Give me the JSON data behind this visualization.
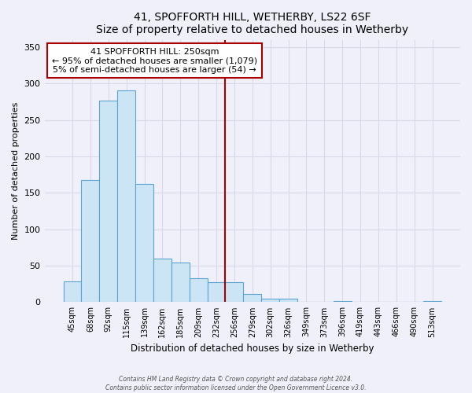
{
  "title": "41, SPOFFORTH HILL, WETHERBY, LS22 6SF",
  "subtitle": "Size of property relative to detached houses in Wetherby",
  "xlabel": "Distribution of detached houses by size in Wetherby",
  "ylabel": "Number of detached properties",
  "bar_labels": [
    "45sqm",
    "68sqm",
    "92sqm",
    "115sqm",
    "139sqm",
    "162sqm",
    "185sqm",
    "209sqm",
    "232sqm",
    "256sqm",
    "279sqm",
    "302sqm",
    "326sqm",
    "349sqm",
    "373sqm",
    "396sqm",
    "419sqm",
    "443sqm",
    "466sqm",
    "490sqm",
    "513sqm"
  ],
  "bar_values": [
    29,
    168,
    277,
    290,
    162,
    60,
    54,
    33,
    27,
    27,
    11,
    5,
    5,
    0,
    0,
    2,
    0,
    0,
    0,
    0,
    2
  ],
  "bar_color": "#cce5f5",
  "bar_edge_color": "#5ba3d0",
  "vline_color": "#aa0000",
  "annotation_line1": "41 SPOFFORTH HILL: 250sqm",
  "annotation_line2": "← 95% of detached houses are smaller (1,079)",
  "annotation_line3": "5% of semi-detached houses are larger (54) →",
  "annotation_box_color": "#ffffff",
  "annotation_border_color": "#aa0000",
  "ylim": [
    0,
    360
  ],
  "yticks": [
    0,
    50,
    100,
    150,
    200,
    250,
    300,
    350
  ],
  "footer_line1": "Contains HM Land Registry data © Crown copyright and database right 2024.",
  "footer_line2": "Contains public sector information licensed under the Open Government Licence v3.0.",
  "bg_color": "#f0f0fa",
  "grid_color": "#d8d8e8"
}
